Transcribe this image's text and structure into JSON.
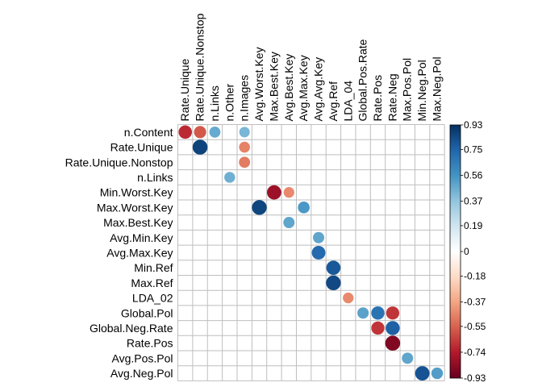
{
  "chart_data": {
    "type": "heatmap",
    "subtype": "correlation-circle-matrix",
    "title": "",
    "xlabel": "",
    "ylabel": "",
    "columns": [
      "Rate.Unique",
      "Rate.Unique.Nonstop",
      "n.Links",
      "n.Other",
      "n.Images",
      "Avg.Worst.Key",
      "Max.Best.Key",
      "Avg.Best.Key",
      "Avg.Max.Key",
      "Avg.Avg.Key",
      "Avg.Ref",
      "LDA_04",
      "Global.Pos.Rate",
      "Rate.Pos",
      "Rate.Neg",
      "Max.Pos.Pol",
      "Min.Neg.Pol",
      "Max.Neg.Pol"
    ],
    "rows": [
      "n.Content",
      "Rate.Unique",
      "Rate.Unique.Nonstop",
      "n.Links",
      "Min.Worst.Key",
      "Max.Worst.Key",
      "Max.Best.Key",
      "Avg.Min.Key",
      "Avg.Max.Key",
      "Min.Ref",
      "Max.Ref",
      "LDA_02",
      "Global.Pol",
      "Global.Neg.Rate",
      "Rate.Pos",
      "Avg.Pos.Pol",
      "Avg.Neg.Pol"
    ],
    "cells": [
      {
        "row": "n.Content",
        "col": "Rate.Unique",
        "value": -0.75
      },
      {
        "row": "n.Content",
        "col": "Rate.Unique.Nonstop",
        "value": -0.62
      },
      {
        "row": "n.Content",
        "col": "n.Links",
        "value": 0.51
      },
      {
        "row": "n.Content",
        "col": "n.Images",
        "value": 0.46
      },
      {
        "row": "Rate.Unique",
        "col": "Rate.Unique.Nonstop",
        "value": 0.93
      },
      {
        "row": "Rate.Unique",
        "col": "n.Images",
        "value": -0.5
      },
      {
        "row": "Rate.Unique.Nonstop",
        "col": "n.Images",
        "value": -0.52
      },
      {
        "row": "n.Links",
        "col": "n.Other",
        "value": 0.49
      },
      {
        "row": "Min.Worst.Key",
        "col": "Max.Best.Key",
        "value": -0.86
      },
      {
        "row": "Min.Worst.Key",
        "col": "Avg.Best.Key",
        "value": -0.48
      },
      {
        "row": "Max.Worst.Key",
        "col": "Avg.Worst.Key",
        "value": 0.92
      },
      {
        "row": "Max.Worst.Key",
        "col": "Avg.Max.Key",
        "value": 0.58
      },
      {
        "row": "Max.Best.Key",
        "col": "Avg.Best.Key",
        "value": 0.53
      },
      {
        "row": "Avg.Min.Key",
        "col": "Avg.Avg.Key",
        "value": 0.53
      },
      {
        "row": "Avg.Max.Key",
        "col": "Avg.Avg.Key",
        "value": 0.78
      },
      {
        "row": "Min.Ref",
        "col": "Avg.Ref",
        "value": 0.85
      },
      {
        "row": "Max.Ref",
        "col": "Avg.Ref",
        "value": 0.91
      },
      {
        "row": "LDA_02",
        "col": "LDA_04",
        "value": -0.48
      },
      {
        "row": "Global.Pol",
        "col": "Global.Pos.Rate",
        "value": 0.54
      },
      {
        "row": "Global.Pol",
        "col": "Rate.Pos",
        "value": 0.74
      },
      {
        "row": "Global.Pol",
        "col": "Rate.Neg",
        "value": -0.72
      },
      {
        "row": "Global.Neg.Rate",
        "col": "Rate.Pos",
        "value": -0.72
      },
      {
        "row": "Global.Neg.Rate",
        "col": "Rate.Neg",
        "value": 0.82
      },
      {
        "row": "Rate.Pos",
        "col": "Rate.Neg",
        "value": -0.93
      },
      {
        "row": "Avg.Pos.Pol",
        "col": "Max.Pos.Pol",
        "value": 0.53
      },
      {
        "row": "Avg.Neg.Pol",
        "col": "Min.Neg.Pol",
        "value": 0.87
      },
      {
        "row": "Avg.Neg.Pol",
        "col": "Max.Neg.Pol",
        "value": 0.56
      }
    ],
    "colorbar": {
      "range": [
        -0.93,
        0.93
      ],
      "tick_labels": [
        "0.93",
        "0.75",
        "0.56",
        "0.37",
        "0.19",
        "0",
        "-0.18",
        "-0.37",
        "-0.55",
        "-0.74",
        "-0.93"
      ],
      "tick_values": [
        0.93,
        0.75,
        0.56,
        0.37,
        0.19,
        0,
        -0.18,
        -0.37,
        -0.55,
        -0.74,
        -0.93
      ],
      "colors": [
        "#67001F",
        "#B2182B",
        "#D6604D",
        "#F4A582",
        "#FDDBC7",
        "#FFFFFF",
        "#D1E5F0",
        "#92C5DE",
        "#4393C3",
        "#2166AC",
        "#053061"
      ]
    },
    "grid": true,
    "legend": "right"
  }
}
